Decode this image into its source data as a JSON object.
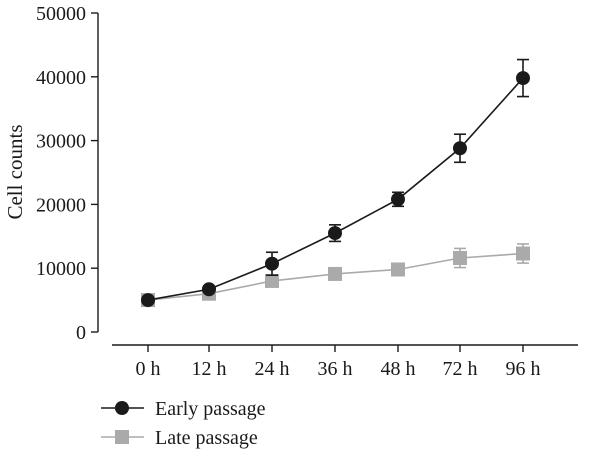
{
  "chart_data": {
    "type": "line",
    "title": "",
    "xlabel": "",
    "ylabel": "Cell counts",
    "categories": [
      "0 h",
      "12 h",
      "24 h",
      "36 h",
      "48 h",
      "72 h",
      "96 h"
    ],
    "ylim": [
      0,
      50000
    ],
    "yticks": [
      0,
      10000,
      20000,
      30000,
      40000,
      50000
    ],
    "grid": false,
    "legend_position": "bottom-left",
    "series": [
      {
        "name": "Early passage",
        "marker": "circle",
        "color": "#1a1a1a",
        "values": [
          5000,
          6700,
          10700,
          15500,
          20800,
          28800,
          39800
        ],
        "errors": [
          200,
          300,
          1800,
          1300,
          1100,
          2200,
          2900
        ]
      },
      {
        "name": "Late passage",
        "marker": "square",
        "color": "#aaaaaa",
        "values": [
          5000,
          6000,
          8000,
          9100,
          9800,
          11600,
          12300
        ],
        "errors": [
          200,
          200,
          400,
          400,
          500,
          1500,
          1500
        ]
      }
    ]
  }
}
